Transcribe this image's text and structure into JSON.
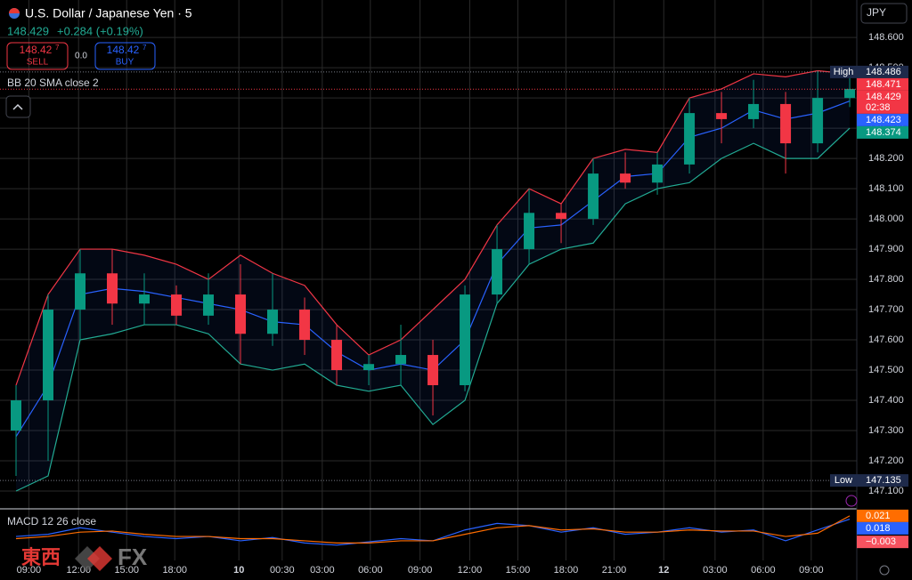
{
  "header": {
    "title": "U.S. Dollar / Japanese Yen · 5",
    "last": "148.429",
    "change": "+0.284 (+0.19%)",
    "sell_price": "148.42",
    "sell_pip": "7",
    "sell": "SELL",
    "spread": "0.0",
    "buy_price": "148.42",
    "buy_pip": "7",
    "buy": "BUY",
    "indicator": "BB 20 SMA close 2",
    "currency": "JPY",
    "watermark_cn": "東西",
    "watermark_fx": "FX"
  },
  "chart_data": [
    {
      "type": "candlestick",
      "xlim": [
        0,
        53.44
      ],
      "ylim": [
        147.047,
        148.724
      ],
      "xticks": [
        {
          "value": 1.8,
          "label": "09:00"
        },
        {
          "value": 4.9,
          "label": "12:00"
        },
        {
          "value": 7.9,
          "label": "15:00"
        },
        {
          "value": 10.9,
          "label": "18:00"
        },
        {
          "value": 14.9,
          "label": "10"
        },
        {
          "value": 17.6,
          "label": "00:30"
        },
        {
          "value": 20.1,
          "label": "03:00"
        },
        {
          "value": 23.1,
          "label": "06:00"
        },
        {
          "value": 26.2,
          "label": "09:00"
        },
        {
          "value": 29.3,
          "label": "12:00"
        },
        {
          "value": 32.3,
          "label": "15:00"
        },
        {
          "value": 35.3,
          "label": "18:00"
        },
        {
          "value": 38.3,
          "label": "21:00"
        },
        {
          "value": 41.4,
          "label": "12"
        },
        {
          "value": 44.6,
          "label": "03:00"
        },
        {
          "value": 47.6,
          "label": "06:00"
        },
        {
          "value": 50.6,
          "label": "09:00"
        }
      ],
      "yticks": [
        {
          "value": 147.1,
          "label": "147.100"
        },
        {
          "value": 147.2,
          "label": "147.200"
        },
        {
          "value": 147.3,
          "label": "147.300"
        },
        {
          "value": 147.4,
          "label": "147.400"
        },
        {
          "value": 147.5,
          "label": "147.500"
        },
        {
          "value": 147.6,
          "label": "147.600"
        },
        {
          "value": 147.7,
          "label": "147.700"
        },
        {
          "value": 147.8,
          "label": "147.800"
        },
        {
          "value": 147.9,
          "label": "147.900"
        },
        {
          "value": 148.0,
          "label": "148.000"
        },
        {
          "value": 148.1,
          "label": "148.100"
        },
        {
          "value": 148.2,
          "label": "148.200"
        },
        {
          "value": 148.3,
          "label": "148.300"
        },
        {
          "value": 148.4,
          "label": "148.400"
        },
        {
          "value": 148.5,
          "label": "148.500"
        },
        {
          "value": 148.6,
          "label": "148.600"
        }
      ],
      "grid": true,
      "x": [
        1,
        3,
        5,
        7,
        9,
        11,
        13,
        15,
        17,
        19,
        21,
        23,
        25,
        27,
        29,
        31,
        33,
        35,
        37,
        39,
        41,
        43,
        45,
        47,
        49,
        51,
        53
      ],
      "open": [
        147.3,
        147.4,
        147.7,
        147.82,
        147.72,
        147.75,
        147.68,
        147.75,
        147.62,
        147.7,
        147.6,
        147.5,
        147.52,
        147.55,
        147.45,
        147.75,
        147.9,
        148.02,
        148.0,
        148.15,
        148.12,
        148.18,
        148.35,
        148.33,
        148.38,
        148.25,
        148.4
      ],
      "high": [
        147.45,
        147.75,
        147.9,
        147.9,
        147.82,
        147.78,
        147.82,
        147.85,
        147.82,
        147.74,
        147.65,
        147.55,
        147.65,
        147.6,
        147.78,
        147.98,
        148.1,
        148.05,
        148.2,
        148.22,
        148.22,
        148.4,
        148.42,
        148.46,
        148.42,
        148.49,
        148.48
      ],
      "low": [
        147.15,
        147.2,
        147.6,
        147.65,
        147.65,
        147.65,
        147.65,
        147.52,
        147.58,
        147.55,
        147.45,
        147.45,
        147.45,
        147.35,
        147.43,
        147.72,
        147.85,
        147.92,
        147.98,
        148.1,
        148.08,
        148.15,
        148.25,
        148.3,
        148.15,
        148.22,
        148.37
      ],
      "close": [
        147.4,
        147.7,
        147.82,
        147.72,
        147.75,
        147.68,
        147.75,
        147.62,
        147.7,
        147.6,
        147.5,
        147.52,
        147.55,
        147.45,
        147.75,
        147.9,
        148.02,
        148.0,
        148.15,
        148.12,
        148.18,
        148.35,
        148.33,
        148.38,
        148.25,
        148.4,
        148.43
      ],
      "up_color": "#089981",
      "down_color": "#f23645",
      "series": [
        {
          "color": "#f23645",
          "values": [
            147.45,
            147.75,
            147.9,
            147.9,
            147.88,
            147.85,
            147.8,
            147.88,
            147.82,
            147.78,
            147.65,
            147.55,
            147.6,
            147.7,
            147.8,
            147.98,
            148.1,
            148.05,
            148.2,
            148.23,
            148.22,
            148.4,
            148.43,
            148.48,
            148.47,
            148.49,
            148.48
          ]
        },
        {
          "color": "#2962ff",
          "values": [
            147.28,
            147.45,
            147.75,
            147.77,
            147.76,
            147.74,
            147.72,
            147.7,
            147.66,
            147.65,
            147.56,
            147.5,
            147.52,
            147.5,
            147.6,
            147.85,
            147.97,
            147.98,
            148.06,
            148.14,
            148.15,
            148.27,
            148.3,
            148.36,
            148.33,
            148.35,
            148.39
          ]
        },
        {
          "color": "#22ab94",
          "values": [
            147.1,
            147.15,
            147.6,
            147.62,
            147.65,
            147.65,
            147.62,
            147.52,
            147.5,
            147.52,
            147.45,
            147.43,
            147.45,
            147.32,
            147.4,
            147.72,
            147.85,
            147.9,
            147.92,
            148.05,
            148.1,
            148.12,
            148.2,
            148.25,
            148.2,
            148.2,
            148.3
          ]
        }
      ],
      "price_tags": [
        {
          "value": 148.486,
          "tag": "High",
          "color": "#1e2a4a",
          "line": "#787b86"
        },
        {
          "value": 148.471,
          "color": "#f23645"
        },
        {
          "value": 148.429,
          "color": "#f23645",
          "countdown": "02:38",
          "line": "#f23645"
        },
        {
          "value": 148.423,
          "color": "#2962ff"
        },
        {
          "value": 148.374,
          "color": "#089981"
        },
        {
          "value": 147.135,
          "tag": "Low",
          "color": "#1e2a4a",
          "line": "#787b86"
        }
      ]
    },
    {
      "type": "line",
      "title": "MACD 12 26 close",
      "xlim": [
        0,
        53.44
      ],
      "ylim": [
        -0.016,
        0.025
      ],
      "x": [
        1,
        3,
        5,
        7,
        9,
        11,
        13,
        15,
        17,
        19,
        21,
        23,
        25,
        27,
        29,
        31,
        33,
        35,
        37,
        39,
        41,
        43,
        45,
        47,
        49,
        51,
        53
      ],
      "series": [
        {
          "color": "#2962ff",
          "values": [
            0.002,
            0.004,
            0.01,
            0.006,
            0.002,
            0.0,
            0.002,
            -0.002,
            0.001,
            -0.004,
            -0.006,
            -0.003,
            0.0,
            -0.002,
            0.008,
            0.014,
            0.012,
            0.006,
            0.01,
            0.004,
            0.006,
            0.01,
            0.006,
            0.008,
            -0.002,
            0.008,
            0.018
          ]
        },
        {
          "color": "#ff6d00",
          "values": [
            0.0,
            0.002,
            0.006,
            0.007,
            0.004,
            0.002,
            0.002,
            0.0,
            0.0,
            -0.002,
            -0.004,
            -0.004,
            -0.002,
            -0.002,
            0.004,
            0.01,
            0.012,
            0.008,
            0.009,
            0.006,
            0.006,
            0.008,
            0.007,
            0.007,
            0.002,
            0.005,
            0.021
          ]
        }
      ],
      "price_tags": [
        {
          "value": 0.021,
          "color": "#ff6d00"
        },
        {
          "value": 0.018,
          "color": "#2962ff"
        },
        {
          "value": -0.003,
          "label": "−0.003",
          "color": "#f7525f"
        }
      ]
    }
  ]
}
